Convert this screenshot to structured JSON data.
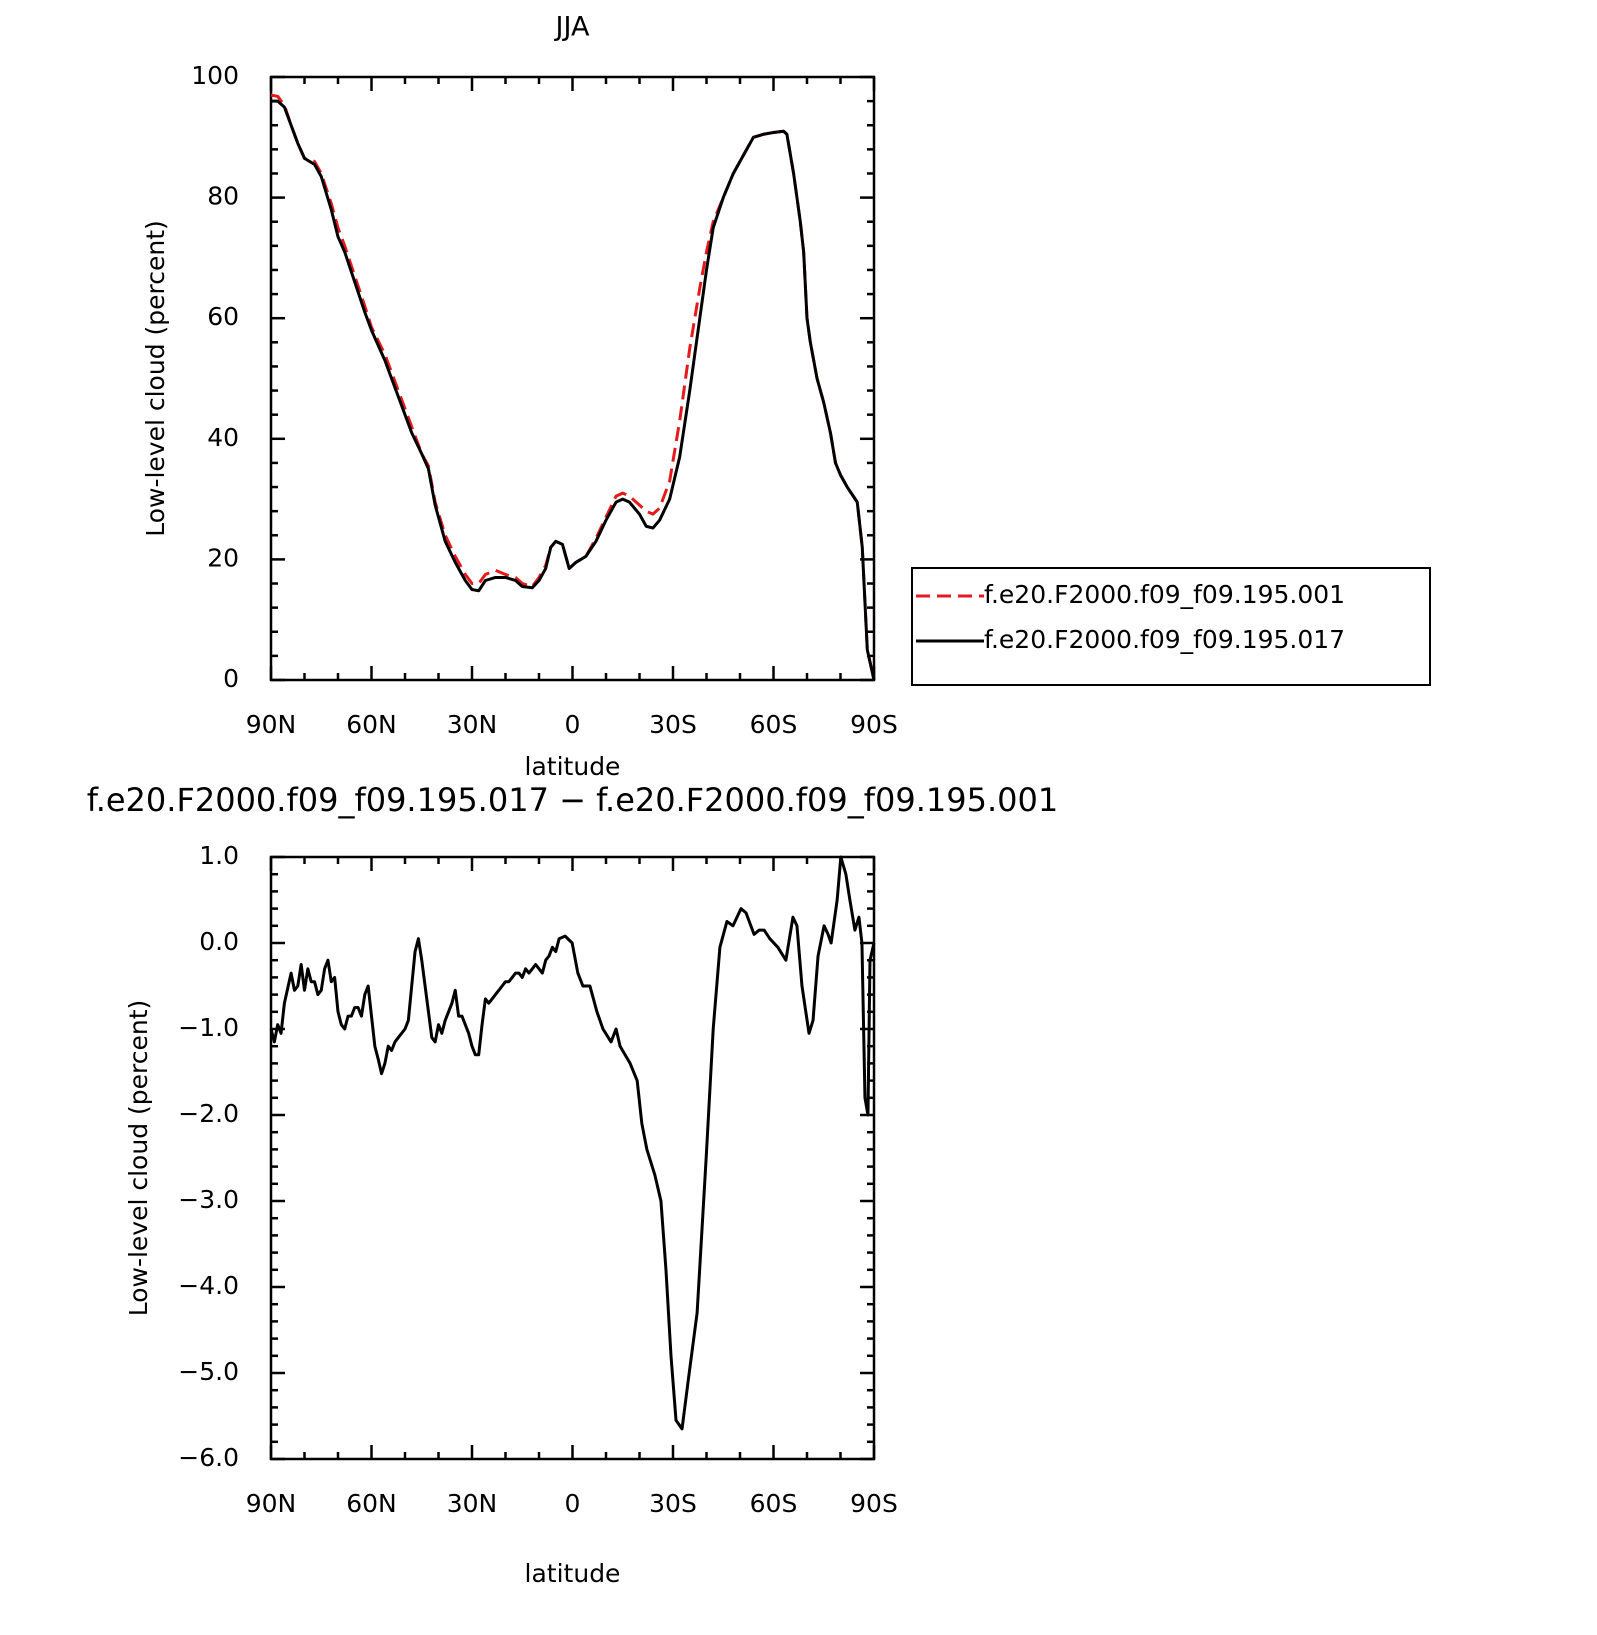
{
  "chart_data": [
    {
      "type": "line",
      "title": "JJA",
      "xlabel": "latitude",
      "ylabel": "Low-level cloud (percent)",
      "x": [
        90,
        88,
        86,
        84,
        82,
        80,
        77,
        75,
        72,
        70,
        68,
        65,
        62,
        60,
        56,
        52,
        48,
        45,
        43,
        41,
        38,
        35,
        32,
        30,
        28,
        26,
        23,
        20,
        17,
        15,
        12,
        10,
        8,
        6.5,
        5,
        3,
        1,
        -1,
        -4,
        -7,
        -10,
        -13,
        -15,
        -17,
        -20,
        -22,
        -24,
        -26,
        -29,
        -32,
        -35,
        -38,
        -40,
        -42,
        -45,
        -48,
        -51,
        -54,
        -57,
        -60,
        -63,
        -64,
        -66,
        -68,
        -69,
        -70,
        -71,
        -73,
        -75,
        -77,
        -78.5,
        -80,
        -82,
        -85,
        -86.5,
        -88,
        -90
      ],
      "series": [
        {
          "name": "f.e20.F2000.f09_f09.195.001",
          "color": "#e41a1c",
          "style": "dashed",
          "values": [
            97,
            96.8,
            95.3,
            92,
            89,
            86.5,
            86,
            84,
            79,
            75,
            72,
            67,
            62,
            58.5,
            54,
            48,
            42,
            37.5,
            35.5,
            29.5,
            24,
            20.5,
            17.5,
            16,
            16,
            17.5,
            18.2,
            17.5,
            17,
            16,
            15.5,
            17,
            19,
            22,
            23,
            22.5,
            18.5,
            19.5,
            20.5,
            23.5,
            27,
            30.5,
            31,
            30.5,
            29,
            28,
            27.5,
            28.5,
            33,
            43,
            55,
            65,
            71,
            76,
            80,
            84,
            87,
            90,
            90.5,
            90.8,
            91,
            90.5,
            84,
            76,
            71,
            60,
            56,
            50,
            46,
            41,
            36,
            34,
            32,
            29.5,
            22,
            5,
            0
          ]
        },
        {
          "name": "f.e20.F2000.f09_f09.195.017",
          "color": "#000000",
          "style": "solid",
          "values": [
            96,
            96,
            95,
            92,
            89,
            86.5,
            85.5,
            83.5,
            78,
            73.5,
            71,
            66,
            61,
            58,
            53,
            47,
            41,
            37.5,
            35,
            29,
            23,
            19.5,
            16.5,
            15,
            14.8,
            16.5,
            17,
            17,
            16.5,
            15.5,
            15.3,
            16.5,
            18.5,
            22,
            23,
            22.5,
            18.5,
            19.5,
            20.5,
            23,
            26.5,
            29.5,
            30,
            29.5,
            27.5,
            25.5,
            25.2,
            26.5,
            30,
            37,
            48,
            60,
            68,
            75,
            80,
            84,
            87,
            90,
            90.5,
            90.8,
            91,
            90.5,
            84,
            76,
            71,
            60,
            56,
            50,
            46,
            41,
            36,
            34,
            32,
            29.5,
            22,
            5,
            0
          ]
        }
      ],
      "xlim": [
        90,
        -90
      ],
      "xticks": [
        {
          "value": 90,
          "label": "90N"
        },
        {
          "value": 60,
          "label": "60N"
        },
        {
          "value": 30,
          "label": "30N"
        },
        0,
        {
          "value": -30,
          "label": "30S"
        },
        {
          "value": -60,
          "label": "60S"
        },
        {
          "value": -90,
          "label": "90S"
        }
      ],
      "ylim": [
        0,
        100
      ],
      "yticks": [
        0,
        20,
        40,
        60,
        80,
        100
      ],
      "legend": "right"
    },
    {
      "type": "line",
      "title": "f.e20.F2000.f09_f09.195.017 − f.e20.F2000.f09_f09.195.001",
      "xlabel": "latitude",
      "ylabel": "Low-level cloud (percent)",
      "x": [
        90,
        89,
        88,
        87,
        86,
        84,
        83,
        82,
        81,
        80,
        79,
        78,
        77,
        76,
        75,
        74,
        73,
        72,
        71,
        70,
        69,
        68,
        67,
        66,
        65,
        64,
        63,
        62,
        61,
        60,
        59,
        58,
        57,
        56,
        55,
        54,
        53,
        52,
        50,
        49,
        48,
        47,
        46,
        45,
        44,
        43,
        42,
        41,
        40,
        39,
        38,
        37,
        36,
        35,
        34,
        33,
        32,
        31,
        30,
        29,
        28,
        27,
        26,
        25,
        24,
        23,
        22,
        21,
        20,
        19,
        18,
        17,
        16,
        15,
        14,
        13,
        12,
        11,
        10,
        9,
        8,
        7,
        6,
        5,
        4,
        2.2,
        0.1,
        -1.6,
        -3.1,
        -5.2,
        -7.3,
        -9.1,
        -11.5,
        -13,
        -14.2,
        -17.2,
        -19.3,
        -20.7,
        -22.2,
        -24.6,
        -26.4,
        -27.9,
        -29.4,
        -30.9,
        -32.7,
        -34.5,
        -37.2,
        -39.9,
        -42,
        -44,
        -46.1,
        -47.9,
        -50.3,
        -51.8,
        -54.2,
        -55.7,
        -57.2,
        -58.9,
        -61.3,
        -63.7,
        -65.8,
        -67,
        -68.5,
        -70.6,
        -71.8,
        -73.3,
        -75.1,
        -76.3,
        -77.2,
        -79,
        -80.1,
        -81.6,
        -82.8,
        -84.3,
        -85.5,
        -86.4,
        -87.3,
        -88.2,
        -88.8,
        -90
      ],
      "series": [
        {
          "color": "#000000",
          "style": "solid",
          "values": [
            -1.0,
            -1.15,
            -0.95,
            -1.05,
            -0.7,
            -0.35,
            -0.55,
            -0.5,
            -0.25,
            -0.55,
            -0.3,
            -0.45,
            -0.45,
            -0.6,
            -0.55,
            -0.3,
            -0.2,
            -0.45,
            -0.4,
            -0.8,
            -0.95,
            -1.0,
            -0.85,
            -0.85,
            -0.75,
            -0.75,
            -0.85,
            -0.6,
            -0.5,
            -0.85,
            -1.2,
            -1.35,
            -1.52,
            -1.4,
            -1.2,
            -1.25,
            -1.15,
            -1.1,
            -1.0,
            -0.9,
            -0.5,
            -0.1,
            0.05,
            -0.2,
            -0.5,
            -0.8,
            -1.1,
            -1.15,
            -0.95,
            -1.05,
            -0.9,
            -0.8,
            -0.7,
            -0.55,
            -0.85,
            -0.85,
            -0.95,
            -1.05,
            -1.2,
            -1.3,
            -1.3,
            -0.95,
            -0.65,
            -0.7,
            -0.65,
            -0.6,
            -0.55,
            -0.5,
            -0.45,
            -0.45,
            -0.4,
            -0.35,
            -0.35,
            -0.4,
            -0.3,
            -0.35,
            -0.3,
            -0.25,
            -0.3,
            -0.35,
            -0.2,
            -0.15,
            -0.05,
            -0.1,
            0.05,
            0.08,
            0.0,
            -0.35,
            -0.5,
            -0.5,
            -0.8,
            -1.0,
            -1.15,
            -1.0,
            -1.2,
            -1.4,
            -1.6,
            -2.1,
            -2.4,
            -2.7,
            -3.0,
            -3.8,
            -4.8,
            -5.55,
            -5.65,
            -5.1,
            -4.3,
            -2.5,
            -1.0,
            -0.05,
            0.25,
            0.2,
            0.4,
            0.35,
            0.1,
            0.15,
            0.15,
            0.05,
            -0.05,
            -0.2,
            0.3,
            0.2,
            -0.5,
            -1.05,
            -0.9,
            -0.15,
            0.2,
            0.1,
            0.0,
            0.5,
            1.0,
            0.8,
            0.5,
            0.15,
            0.3,
            0.0,
            -1.8,
            -2.0,
            -0.2,
            0.0
          ]
        }
      ],
      "xlim": [
        90,
        -90
      ],
      "xticks": [
        {
          "value": 90,
          "label": "90N"
        },
        {
          "value": 60,
          "label": "60N"
        },
        {
          "value": 30,
          "label": "30N"
        },
        0,
        {
          "value": -30,
          "label": "30S"
        },
        {
          "value": -60,
          "label": "60S"
        },
        {
          "value": -90,
          "label": "90S"
        }
      ],
      "ylim": [
        -6,
        1
      ],
      "yticks": [
        {
          "value": -6,
          "label": "−6.0"
        },
        {
          "value": -5,
          "label": "−5.0"
        },
        {
          "value": -4,
          "label": "−4.0"
        },
        {
          "value": -3,
          "label": "−3.0"
        },
        {
          "value": -2,
          "label": "−2.0"
        },
        {
          "value": -1,
          "label": "−1.0"
        },
        {
          "value": 0,
          "label": "0.0"
        },
        {
          "value": 1,
          "label": "1.0"
        }
      ]
    }
  ]
}
